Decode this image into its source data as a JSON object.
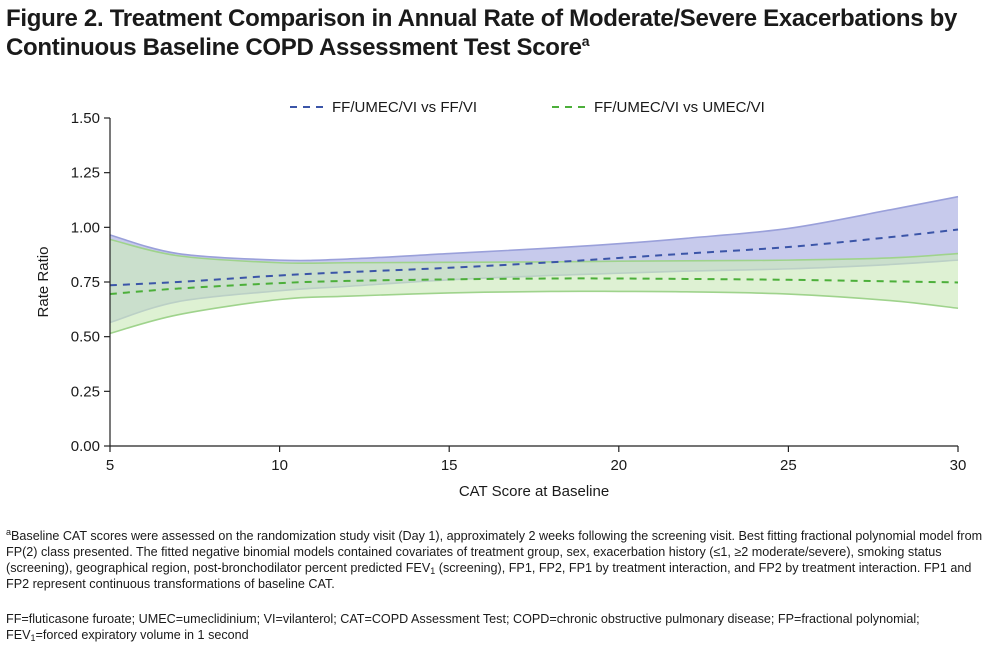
{
  "figure": {
    "title_main": "Figure 2. Treatment Comparison in Annual Rate of Moderate/Severe Exacerbations by Continuous Baseline COPD Assessment Test Score",
    "title_sup": "a"
  },
  "chart_data": {
    "type": "line",
    "xlabel": "CAT Score at Baseline",
    "ylabel": "Rate Ratio",
    "xlim": [
      5,
      30
    ],
    "ylim": [
      0,
      1.5
    ],
    "x_ticks": [
      "5",
      "10",
      "15",
      "20",
      "25",
      "30"
    ],
    "y_ticks": [
      "0.00",
      "0.25",
      "0.50",
      "0.75",
      "1.00",
      "1.25",
      "1.50"
    ],
    "legend_position": "top",
    "grid": false,
    "series": [
      {
        "name": "FF/UMEC/VI vs FF/VI",
        "color": "#3b55a8",
        "band_color": "#b4b8e6",
        "x": [
          5,
          7,
          10,
          12,
          15,
          18,
          20,
          22,
          25,
          28,
          30
        ],
        "y": [
          0.735,
          0.75,
          0.78,
          0.795,
          0.815,
          0.84,
          0.86,
          0.88,
          0.91,
          0.955,
          0.99
        ],
        "lower": [
          0.565,
          0.66,
          0.71,
          0.73,
          0.76,
          0.78,
          0.79,
          0.8,
          0.81,
          0.83,
          0.85
        ],
        "upper": [
          0.965,
          0.88,
          0.85,
          0.855,
          0.88,
          0.905,
          0.925,
          0.95,
          0.995,
          1.08,
          1.14
        ]
      },
      {
        "name": "FF/UMEC/VI vs UMEC/VI",
        "color": "#4caf3a",
        "band_color": "#cdeabb",
        "x": [
          5,
          7,
          10,
          12,
          15,
          18,
          20,
          22,
          25,
          28,
          30
        ],
        "y": [
          0.695,
          0.72,
          0.745,
          0.755,
          0.762,
          0.766,
          0.766,
          0.764,
          0.76,
          0.753,
          0.748
        ],
        "lower": [
          0.515,
          0.6,
          0.67,
          0.685,
          0.7,
          0.707,
          0.707,
          0.705,
          0.695,
          0.665,
          0.63
        ],
        "upper": [
          0.945,
          0.87,
          0.838,
          0.838,
          0.84,
          0.842,
          0.845,
          0.847,
          0.85,
          0.86,
          0.88
        ]
      }
    ]
  },
  "footnotes": {
    "a_sup": "a",
    "a_part1": "Baseline CAT scores were assessed on the randomization study visit (Day 1), approximately 2 weeks following the screening visit. Best fitting fractional polynomial model from FP(2) class presented. The fitted negative binomial models contained covariates of treatment group, sex, exacerbation history (≤1, ≥2 moderate/severe), smoking status (screening), geographical region, post-bronchodilator percent predicted FEV",
    "a_sub": "1",
    "a_part2": " (screening), FP1, FP2, FP1 by treatment interaction, and FP2 by treatment interaction. FP1 and FP2 represent continuous transformations of baseline CAT.",
    "abbr_part1": "FF=fluticasone furoate; UMEC=umeclidinium; VI=vilanterol; CAT=COPD Assessment Test; COPD=chronic obstructive pulmonary disease; FP=fractional polynomial; FEV",
    "abbr_sub": "1",
    "abbr_part2": "=forced expiratory volume in 1 second"
  }
}
